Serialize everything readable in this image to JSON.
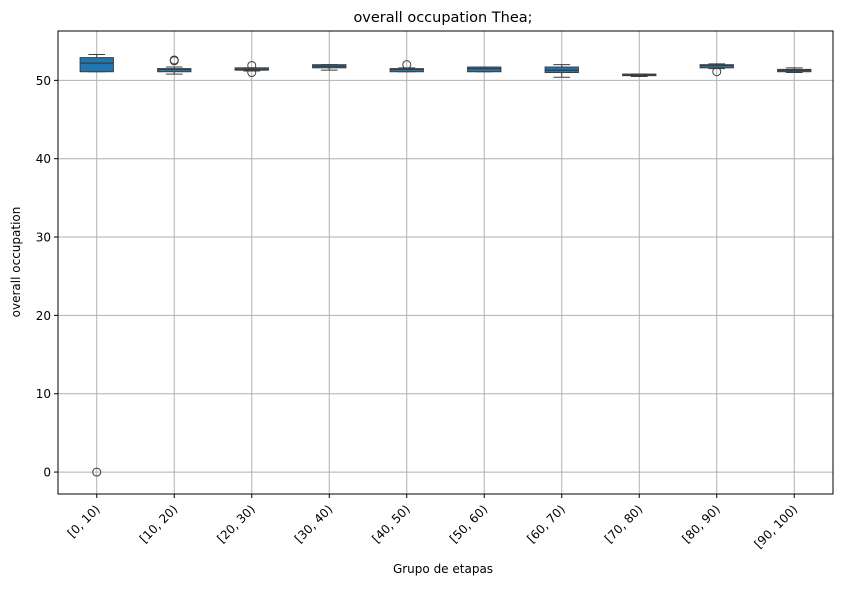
{
  "chart_data": {
    "type": "box",
    "title": "overall occupation Thea;",
    "xlabel": "Grupo de etapas",
    "ylabel": "overall occupation",
    "ylim": [
      -2.8,
      56.3
    ],
    "yticks": [
      0,
      10,
      20,
      30,
      40,
      50
    ],
    "grid": true,
    "box_color": "#1f77b4",
    "categories": [
      "[0, 10)",
      "[10, 20)",
      "[20, 30)",
      "[30, 40)",
      "[40, 50)",
      "[50, 60)",
      "[60, 70)",
      "[70, 80)",
      "[80, 90)",
      "[90, 100)"
    ],
    "boxes": [
      {
        "whislo": 51.1,
        "q1": 51.1,
        "med": 52.2,
        "q3": 52.9,
        "whishi": 53.3,
        "fliers": [
          0.0
        ]
      },
      {
        "whislo": 50.8,
        "q1": 51.1,
        "med": 51.4,
        "q3": 51.5,
        "whishi": 51.7,
        "fliers": [
          52.5,
          52.6
        ]
      },
      {
        "whislo": 51.2,
        "q1": 51.3,
        "med": 51.4,
        "q3": 51.6,
        "whishi": 51.6,
        "fliers": [
          51.9,
          51.0
        ]
      },
      {
        "whislo": 51.3,
        "q1": 51.6,
        "med": 51.8,
        "q3": 52.0,
        "whishi": 52.0,
        "fliers": []
      },
      {
        "whislo": 51.1,
        "q1": 51.1,
        "med": 51.4,
        "q3": 51.5,
        "whishi": 51.6,
        "fliers": [
          52.0
        ]
      },
      {
        "whislo": 51.1,
        "q1": 51.1,
        "med": 51.5,
        "q3": 51.7,
        "whishi": 51.7,
        "fliers": []
      },
      {
        "whislo": 50.4,
        "q1": 51.0,
        "med": 51.3,
        "q3": 51.7,
        "whishi": 52.0,
        "fliers": []
      },
      {
        "whislo": 50.5,
        "q1": 50.6,
        "med": 50.7,
        "q3": 50.8,
        "whishi": 50.8,
        "fliers": []
      },
      {
        "whislo": 51.5,
        "q1": 51.6,
        "med": 51.9,
        "q3": 52.0,
        "whishi": 52.1,
        "fliers": [
          51.1
        ]
      },
      {
        "whislo": 51.0,
        "q1": 51.1,
        "med": 51.3,
        "q3": 51.4,
        "whishi": 51.6,
        "fliers": []
      }
    ]
  }
}
